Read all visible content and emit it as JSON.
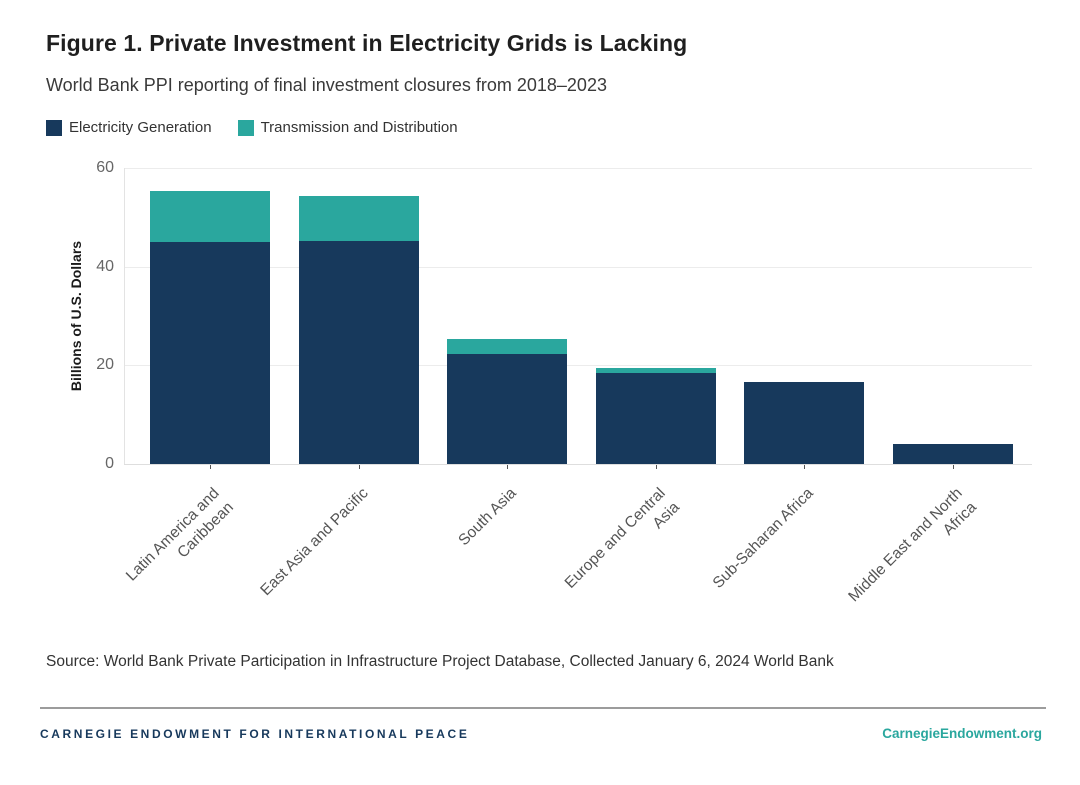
{
  "figure": {
    "title": "Figure 1. Private Investment in Electricity Grids is Lacking",
    "subtitle": "World Bank PPI reporting of final investment closures from 2018–2023",
    "source": "Source: World Bank Private Participation in Infrastructure Project Database, Collected January 6, 2024 World Bank"
  },
  "legend": {
    "items": [
      {
        "label": "Electricity Generation",
        "color": "#17395c"
      },
      {
        "label": "Transmission and Distribution",
        "color": "#2aa79e"
      }
    ]
  },
  "chart_data": {
    "type": "bar",
    "stacked": true,
    "categories": [
      "Latin America and Caribbean",
      "East Asia and Pacific",
      "South Asia",
      "Europe and Central Asia",
      "Sub-Saharan Africa",
      "Middle East and North Africa"
    ],
    "category_lines": [
      [
        "Latin America and",
        "Caribbean"
      ],
      [
        "East Asia and Pacific"
      ],
      [
        "South Asia"
      ],
      [
        "Europe and Central",
        "Asia"
      ],
      [
        "Sub-Saharan Africa"
      ],
      [
        "Middle East and North",
        "Africa"
      ]
    ],
    "series": [
      {
        "name": "Electricity Generation",
        "color": "#17395c",
        "values": [
          45.0,
          45.3,
          22.2,
          18.5,
          16.6,
          4.1
        ]
      },
      {
        "name": "Transmission and Distribution",
        "color": "#2aa79e",
        "values": [
          10.3,
          9.1,
          3.2,
          1.0,
          0,
          0
        ]
      }
    ],
    "title": "Figure 1. Private Investment in Electricity Grids is Lacking",
    "xlabel": "",
    "ylabel": "Billions of U.S. Dollars",
    "yticks": [
      0,
      20,
      40,
      60
    ],
    "ylim": [
      0,
      60
    ],
    "grid": "horizontal",
    "legend_position": "top-left"
  },
  "footer": {
    "org": "CARNEGIE ENDOWMENT FOR INTERNATIONAL PEACE",
    "site": "CarnegieEndowment.org"
  },
  "colors": {
    "generation": "#17395c",
    "transmission": "#2aa79e",
    "title_text": "#1f1f1f",
    "body_text": "#333333",
    "tick_text": "#666666",
    "gridline": "#ececec",
    "divider": "#9c9c9c"
  }
}
